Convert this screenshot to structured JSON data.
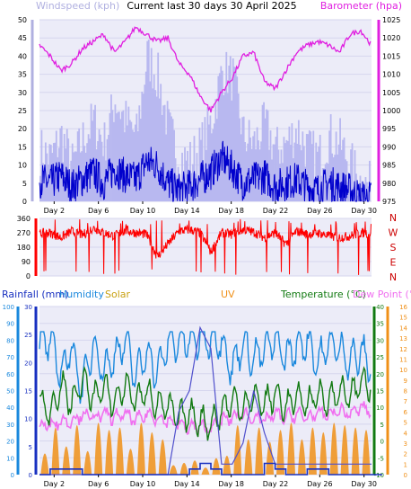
{
  "header": {
    "left_label": "Windspeed (kph)",
    "title": "Current last 30 days 30 April 2025",
    "right_label": "Barometer (hpa)"
  },
  "bottom_header": {
    "rainfall": "Rainfall (mm)",
    "humidity": "Humidity",
    "solar": "Solar",
    "uv": "UV",
    "temperature": "Temperature (°C)",
    "dewpoint": "Dew Point (°C)"
  },
  "colors": {
    "wind_avg": "#0000cc",
    "wind_gust": "#b8b8f0",
    "barometer": "#e020e0",
    "direction": "#ff0000",
    "humidity": "#1a88dd",
    "temperature": "#127a12",
    "dewpoint": "#f070f0",
    "solar": "#f09018",
    "uv": "#5050cc",
    "rain": "#1830c0"
  },
  "chart_data": [
    {
      "type": "line",
      "name": "wind-barometer",
      "x_tick_labels": [
        "Day 2",
        "Day 6",
        "Day 10",
        "Day 14",
        "Day 18",
        "Day 22",
        "Day 26",
        "Day 30"
      ],
      "left_axis": {
        "label": "Windspeed (kph)",
        "ylim": [
          0,
          50
        ],
        "ticks": [
          0,
          5,
          10,
          15,
          20,
          25,
          30,
          35,
          40,
          45,
          50
        ]
      },
      "right_axis": {
        "label": "Barometer (hpa)",
        "ylim": [
          975,
          1025
        ],
        "ticks": [
          975,
          980,
          985,
          990,
          995,
          1000,
          1005,
          1010,
          1015,
          1020,
          1025
        ]
      },
      "series": [
        {
          "name": "Barometer",
          "axis": "right",
          "values": [
            1018,
            1015,
            1011,
            1013,
            1017,
            1019,
            1021,
            1016,
            1019,
            1023,
            1021,
            1019,
            1020,
            1013,
            1010,
            1004,
            1000,
            1005,
            1009,
            1015,
            1016,
            1008,
            1006,
            1011,
            1016,
            1018,
            1019,
            1018,
            1016,
            1021,
            1022,
            1018
          ]
        },
        {
          "axis": "left",
          "values": [
            6,
            5,
            7,
            4,
            6,
            8,
            5,
            9,
            7,
            6,
            11,
            10,
            5,
            3,
            4,
            6,
            8,
            12,
            9,
            5,
            6,
            7,
            4,
            5,
            6,
            4,
            3,
            5,
            4,
            3,
            1,
            1
          ]
        },
        {
          "axis": "left",
          "values": [
            14,
            12,
            18,
            10,
            17,
            22,
            16,
            28,
            22,
            18,
            40,
            34,
            20,
            12,
            11,
            15,
            22,
            36,
            34,
            18,
            16,
            21,
            14,
            16,
            20,
            14,
            12,
            18,
            16,
            10,
            5,
            4
          ]
        }
      ]
    },
    {
      "type": "line",
      "name": "wind-direction",
      "y_tick_labels": [
        "0",
        "90",
        "180",
        "270",
        "360"
      ],
      "ylim": [
        0,
        360
      ],
      "compass_labels": [
        "N",
        "W",
        "S",
        "E",
        "N"
      ],
      "values": [
        265,
        270,
        240,
        280,
        255,
        300,
        270,
        250,
        285,
        270,
        260,
        120,
        200,
        280,
        290,
        270,
        150,
        270,
        260,
        290,
        275,
        240,
        270,
        200,
        280,
        260,
        270,
        250,
        240,
        250,
        270,
        265
      ]
    },
    {
      "type": "line",
      "name": "weather",
      "x_tick_labels": [
        "Day 2",
        "Day 6",
        "Day 10",
        "Day 14",
        "Day 18",
        "Day 22",
        "Day 26",
        "Day 30"
      ],
      "rain_axis": {
        "ylim": [
          0,
          30
        ],
        "ticks": [
          0,
          5,
          10,
          15,
          20,
          25,
          30
        ]
      },
      "humidity_axis": {
        "ylim": [
          0,
          100
        ],
        "ticks": [
          0,
          10,
          20,
          30,
          40,
          50,
          60,
          70,
          80,
          90,
          100
        ]
      },
      "temperature_axis": {
        "ylim": [
          -10,
          40
        ],
        "ticks": [
          -10,
          -5,
          0,
          5,
          10,
          15,
          20,
          25,
          30,
          35,
          40
        ]
      },
      "uv_axis": {
        "ylim": [
          0,
          16
        ],
        "ticks": [
          0,
          1,
          2,
          3,
          4,
          5,
          6,
          7,
          8,
          9,
          10,
          11,
          12,
          13,
          14,
          15,
          16
        ]
      },
      "series": [
        {
          "name": "Humidity",
          "axis": "humidity",
          "values": [
            78,
            80,
            60,
            76,
            50,
            78,
            62,
            70,
            80,
            58,
            74,
            60,
            78,
            80,
            80,
            81,
            80,
            80,
            62,
            80,
            68,
            75,
            80,
            70,
            76,
            80,
            66,
            78,
            75,
            68,
            72,
            66
          ]
        },
        {
          "name": "Temperature",
          "axis": "temperature",
          "values": [
            12,
            8,
            17,
            11,
            18,
            13,
            16,
            11,
            17,
            12,
            15,
            11,
            10,
            7,
            8,
            6,
            5,
            9,
            12,
            10,
            13,
            11,
            14,
            10,
            13,
            11,
            14,
            12,
            15,
            13,
            18,
            16
          ]
        },
        {
          "name": "Dew Point",
          "axis": "temperature",
          "values": [
            4,
            5,
            6,
            6,
            8,
            7,
            8,
            7,
            8,
            6,
            8,
            7,
            6,
            5,
            4,
            4,
            4,
            6,
            7,
            8,
            7,
            6,
            8,
            7,
            8,
            7,
            8,
            8,
            9,
            8,
            10,
            9
          ]
        },
        {
          "name": "Solar",
          "axis": "humidity",
          "values": [
            18,
            40,
            24,
            42,
            20,
            44,
            38,
            40,
            22,
            44,
            36,
            30,
            8,
            10,
            12,
            6,
            14,
            16,
            42,
            30,
            40,
            28,
            38,
            44,
            30,
            40,
            36,
            44,
            42,
            40,
            38,
            44
          ]
        },
        {
          "name": "UV",
          "axis": "uv",
          "values": [
            0,
            0,
            0,
            0,
            0,
            0,
            0,
            0,
            0,
            0,
            0,
            0,
            0,
            6,
            8,
            14,
            12,
            1,
            1,
            3,
            8,
            4,
            1,
            1,
            1,
            1,
            1,
            1,
            1,
            1,
            1,
            1
          ]
        },
        {
          "name": "Rainfall",
          "axis": "rain",
          "values": [
            0,
            1,
            1,
            1,
            0,
            0,
            0,
            0,
            0,
            0,
            0,
            0,
            0,
            0,
            1,
            2,
            1,
            0,
            0,
            0,
            0,
            2,
            1,
            0,
            0,
            1,
            1,
            0,
            0,
            0,
            0,
            0
          ]
        }
      ]
    }
  ]
}
